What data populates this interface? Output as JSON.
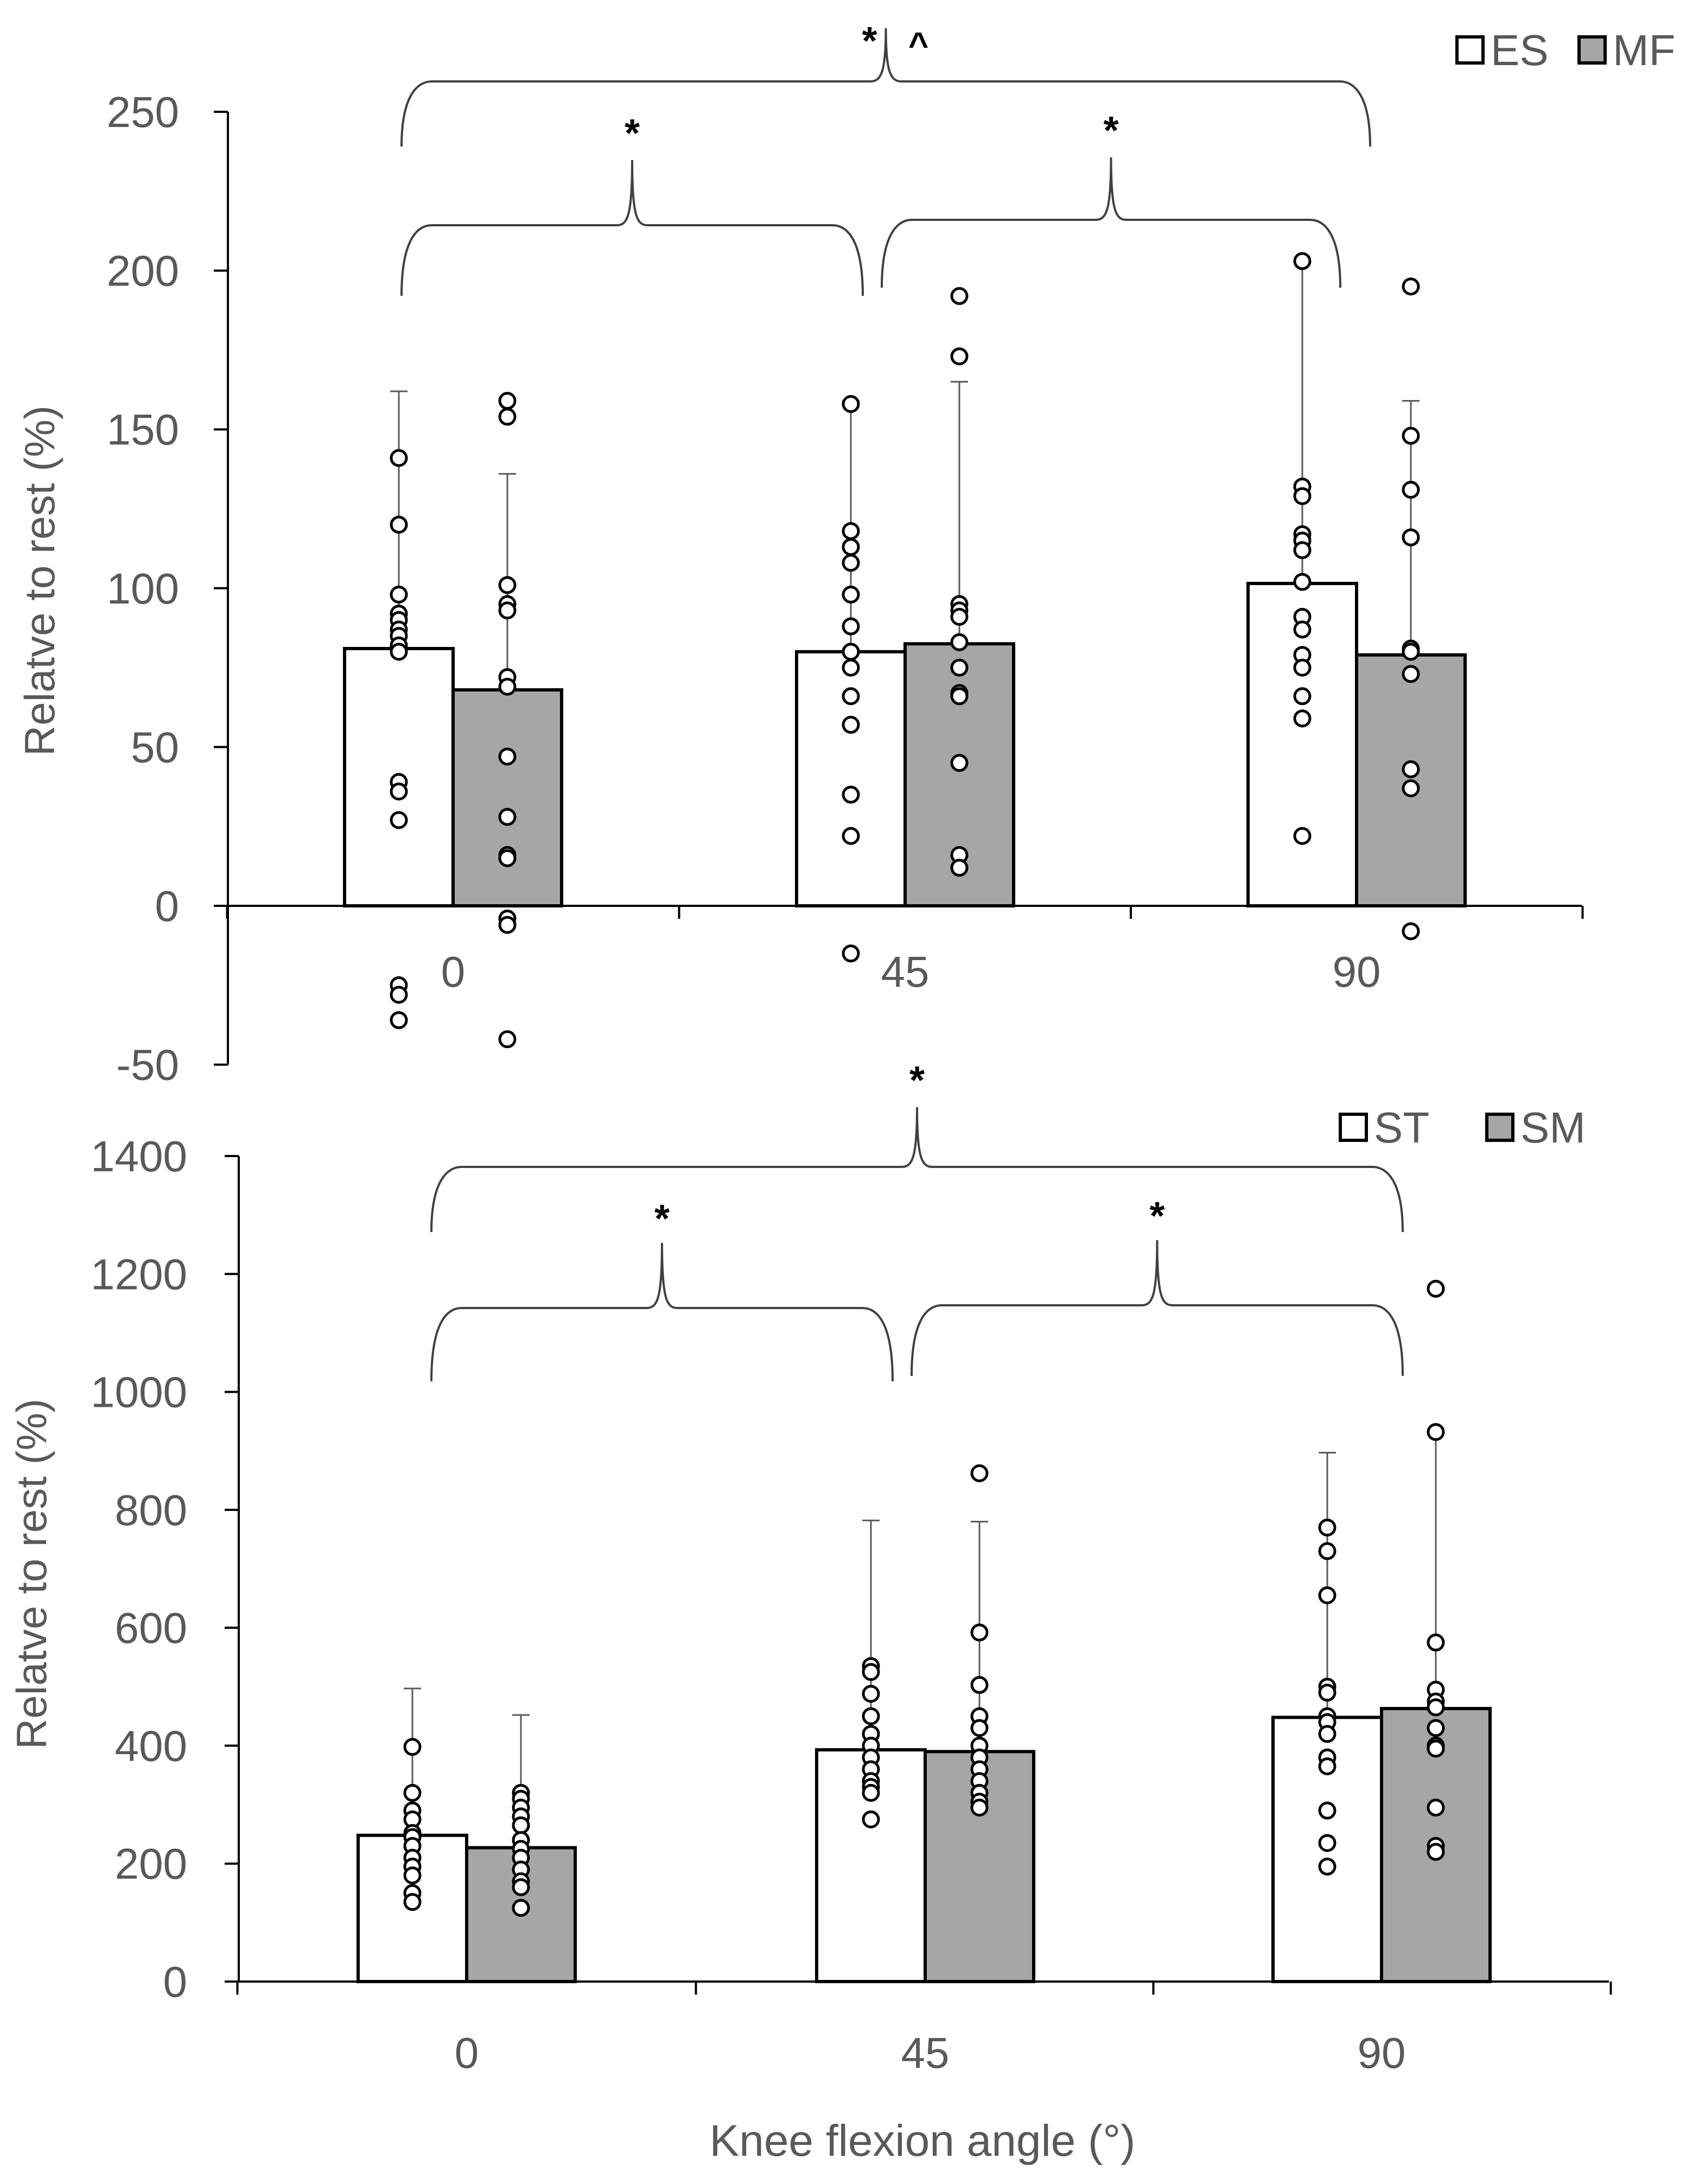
{
  "chart_data": [
    {
      "type": "bar",
      "panel": "top",
      "categories": [
        "0",
        "45",
        "90"
      ],
      "ylabel": "Relatve to rest (%)",
      "xlabel": "",
      "ylim": [
        -50,
        250
      ],
      "yticks": [
        -50,
        0,
        50,
        100,
        150,
        200,
        250
      ],
      "legend_position": "top-right",
      "colors": {
        "series_a": "#ffffff",
        "series_b": "#a6a6a6",
        "outline": "#000000",
        "text": "#595959"
      },
      "series": [
        {
          "name": "ES",
          "values": [
            81,
            80,
            101.5
          ],
          "error_upper": [
            162,
            159,
            203
          ],
          "points": [
            [
              141,
              120,
              98,
              92,
              90,
              87,
              85,
              82,
              80,
              39,
              36,
              27,
              -25,
              -28,
              -36
            ],
            [
              158,
              118,
              113,
              108,
              98,
              88,
              80,
              75,
              66,
              57,
              35,
              22,
              -15
            ],
            [
              203,
              132,
              129,
              117,
              115,
              112,
              102,
              91,
              87,
              79,
              75,
              66,
              59,
              22
            ]
          ]
        },
        {
          "name": "MF",
          "values": [
            68,
            82.5,
            79
          ],
          "error_upper": [
            136,
            165,
            159
          ],
          "points": [
            [
              159,
              154,
              101,
              95,
              93,
              72,
              69,
              47,
              28,
              16,
              15,
              -4,
              -6,
              -42
            ],
            [
              192,
              173,
              95,
              93,
              91,
              83,
              75,
              67,
              66,
              45,
              16,
              12
            ],
            [
              195,
              148,
              131,
              116,
              81,
              80,
              73,
              43,
              37,
              -8
            ]
          ]
        }
      ],
      "significance": [
        {
          "span": [
            "0",
            "90"
          ],
          "label": "*",
          "label2": "^"
        },
        {
          "span": [
            "0",
            "45"
          ],
          "label": "*"
        },
        {
          "span": [
            "45",
            "90"
          ],
          "label": "*"
        }
      ]
    },
    {
      "type": "bar",
      "panel": "bottom",
      "categories": [
        "0",
        "45",
        "90"
      ],
      "ylabel": "Relatve to rest (%)",
      "xlabel": "Knee flexion angle (°)",
      "ylim": [
        0,
        1400
      ],
      "yticks": [
        0,
        200,
        400,
        600,
        800,
        1000,
        1200,
        1400
      ],
      "legend_position": "top-right",
      "colors": {
        "series_a": "#ffffff",
        "series_b": "#a6a6a6",
        "outline": "#000000",
        "text": "#595959"
      },
      "series": [
        {
          "name": "ST",
          "values": [
            248,
            393,
            448
          ],
          "error_upper": [
            497,
            782,
            897
          ],
          "points": [
            [
              398,
              320,
              290,
              275,
              252,
              245,
              230,
              210,
              195,
              180,
              150,
              135
            ],
            [
              535,
              525,
              488,
              450,
              420,
              400,
              380,
              360,
              340,
              330,
              320,
              275
            ],
            [
              770,
              730,
              655,
              500,
              490,
              450,
              440,
              420,
              380,
              365,
              290,
              235,
              195
            ]
          ]
        },
        {
          "name": "SM",
          "values": [
            227,
            390,
            463
          ],
          "error_upper": [
            452,
            780,
            935
          ],
          "points": [
            [
              320,
              310,
              295,
              280,
              265,
              240,
              225,
              210,
              190,
              170,
              160,
              125
            ],
            [
              862,
              592,
              503,
              450,
              430,
              400,
              380,
              360,
              340,
              320,
              305,
              295
            ],
            [
              1175,
              932,
              575,
              495,
              475,
              465,
              430,
              400,
              395,
              295,
              230,
              220
            ]
          ]
        }
      ],
      "significance": [
        {
          "span": [
            "0",
            "90"
          ],
          "label": "*"
        },
        {
          "span": [
            "0",
            "45"
          ],
          "label": "*"
        },
        {
          "span": [
            "45",
            "90"
          ],
          "label": "*"
        }
      ]
    }
  ]
}
